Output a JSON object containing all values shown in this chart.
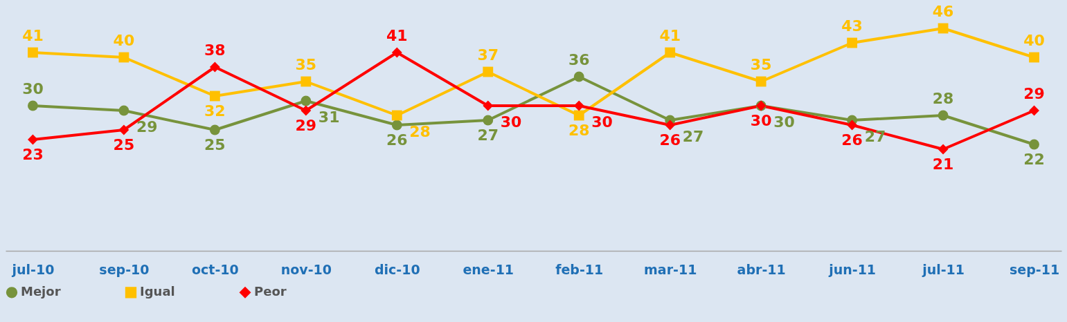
{
  "chart_data": {
    "type": "line",
    "categories": [
      "jul-10",
      "sep-10",
      "oct-10",
      "nov-10",
      "dic-10",
      "ene-11",
      "feb-11",
      "mar-11",
      "abr-11",
      "jun-11",
      "jul-11",
      "sep-11"
    ],
    "series": [
      {
        "name": "Mejor",
        "color": "#77933c",
        "marker": "circle",
        "values": [
          30,
          29,
          25,
          31,
          26,
          27,
          36,
          27,
          30,
          27,
          28,
          22
        ]
      },
      {
        "name": "Igual",
        "color": "#ffc000",
        "marker": "square",
        "values": [
          41,
          40,
          32,
          35,
          28,
          37,
          28,
          41,
          35,
          43,
          46,
          40
        ]
      },
      {
        "name": "Peor",
        "color": "#ff0000",
        "marker": "diamond",
        "values": [
          23,
          25,
          38,
          29,
          41,
          30,
          30,
          26,
          30,
          26,
          21,
          29
        ]
      }
    ],
    "data_labels": true,
    "legend": "bottom",
    "grid": false
  }
}
